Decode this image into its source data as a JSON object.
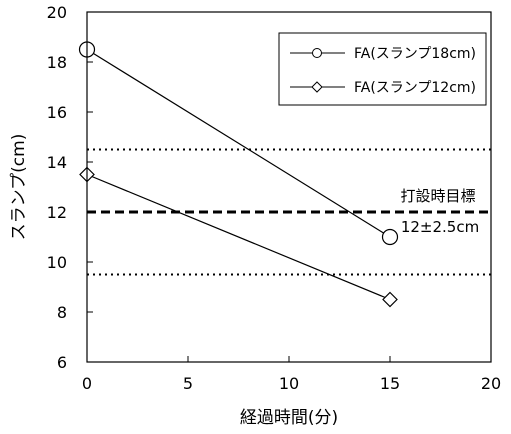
{
  "chart_data": {
    "type": "line",
    "xlabel": "経過時間(分)",
    "ylabel": "スランプ(cm)",
    "xlim": [
      0,
      20
    ],
    "ylim": [
      6,
      20
    ],
    "xticks": [
      0,
      5,
      10,
      15,
      20
    ],
    "yticks": [
      6,
      8,
      10,
      12,
      14,
      16,
      18,
      20
    ],
    "xtick_labels": [
      "0",
      "5",
      "10",
      "15",
      "20"
    ],
    "ytick_labels": [
      "6",
      "8",
      "10",
      "12",
      "14",
      "16",
      "18",
      "20"
    ],
    "grid": false,
    "legend_position": "top-right",
    "series": [
      {
        "name": "FA(スランプ18cm)",
        "marker": "circle",
        "x": [
          0,
          15
        ],
        "y": [
          18.5,
          11
        ]
      },
      {
        "name": "FA(スランプ12cm)",
        "marker": "diamond",
        "x": [
          0,
          15
        ],
        "y": [
          13.5,
          8.5
        ]
      }
    ],
    "reference_lines": [
      {
        "y": 14.5,
        "style": "dotted"
      },
      {
        "y": 12,
        "style": "dashed"
      },
      {
        "y": 9.5,
        "style": "dotted"
      }
    ],
    "annotations": {
      "target_label": "打設時目標",
      "target_range": "12±2.5cm"
    }
  }
}
